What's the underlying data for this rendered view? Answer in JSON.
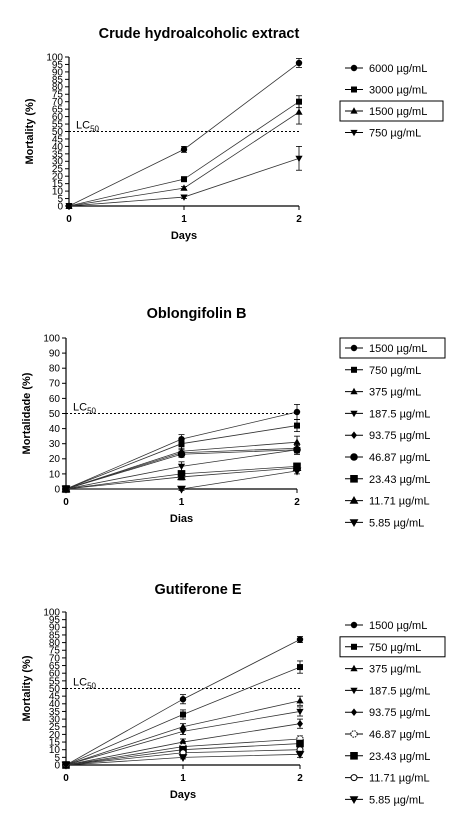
{
  "chart_data": [
    {
      "type": "line",
      "title": "Crude hydroalcoholic extract",
      "xlabel": "Days",
      "ylabel": "Mortality (%)",
      "x": [
        0,
        1,
        2
      ],
      "xticks": [
        "0",
        "1",
        "2"
      ],
      "ylim": [
        0,
        100
      ],
      "yticks": [
        "0",
        "5",
        "10",
        "15",
        "20",
        "25",
        "30",
        "35",
        "40",
        "45",
        "50",
        "55",
        "60",
        "65",
        "70",
        "75",
        "80",
        "85",
        "90",
        "95",
        "100"
      ],
      "threshold": {
        "value": 50,
        "label": "LC",
        "sub": "50"
      },
      "legend_position": "right",
      "highlighted_series": 2,
      "series": [
        {
          "name": "6000 µg/mL",
          "marker": "circle",
          "values": [
            0,
            38,
            96
          ],
          "err": [
            0,
            2,
            3
          ]
        },
        {
          "name": "3000 µg/mL",
          "marker": "square",
          "values": [
            0,
            18,
            70
          ],
          "err": [
            0,
            1,
            4
          ]
        },
        {
          "name": "1500 µg/mL",
          "marker": "triangle",
          "values": [
            0,
            12,
            63
          ],
          "err": [
            0,
            1,
            8
          ]
        },
        {
          "name": "750 µg/mL",
          "marker": "tri-down",
          "values": [
            0,
            6,
            32
          ],
          "err": [
            0,
            1,
            8
          ]
        }
      ]
    },
    {
      "type": "line",
      "title": "Oblongifolin B",
      "xlabel": "Dias",
      "ylabel": "Mortalidade (%)",
      "x": [
        0,
        1,
        2
      ],
      "xticks": [
        "0",
        "1",
        "2"
      ],
      "ylim": [
        0,
        100
      ],
      "yticks": [
        "0",
        "10",
        "20",
        "30",
        "40",
        "50",
        "60",
        "70",
        "80",
        "90",
        "100"
      ],
      "threshold": {
        "value": 50,
        "label": "LC",
        "sub": "50"
      },
      "legend_position": "right",
      "highlighted_series": 0,
      "series": [
        {
          "name": "1500 µg/mL",
          "marker": "circle",
          "values": [
            0,
            33,
            51
          ],
          "err": [
            0,
            3,
            5
          ]
        },
        {
          "name": "750 µg/mL",
          "marker": "square",
          "values": [
            0,
            30,
            42
          ],
          "err": [
            0,
            3,
            4
          ]
        },
        {
          "name": "375 µg/mL",
          "marker": "triangle",
          "values": [
            0,
            25,
            31
          ],
          "err": [
            0,
            3,
            4
          ]
        },
        {
          "name": "187.5 µg/mL",
          "marker": "tri-down",
          "values": [
            0,
            15,
            26
          ],
          "err": [
            0,
            3,
            3
          ]
        },
        {
          "name": "93.75 µg/mL",
          "marker": "diamond",
          "values": [
            0,
            24,
            27
          ],
          "err": [
            0,
            2,
            3
          ]
        },
        {
          "name": "46.87 µg/mL",
          "marker": "circle-big",
          "values": [
            0,
            23,
            26
          ],
          "err": [
            0,
            2,
            3
          ]
        },
        {
          "name": "23.43 µg/mL",
          "marker": "square-big",
          "values": [
            0,
            10,
            15
          ],
          "err": [
            0,
            2,
            2
          ]
        },
        {
          "name": "11.71 µg/mL",
          "marker": "triangle-big",
          "values": [
            0,
            8,
            14
          ],
          "err": [
            0,
            2,
            2
          ]
        },
        {
          "name": "5.85 µg/mL",
          "marker": "tri-down-big",
          "values": [
            0,
            0,
            12
          ],
          "err": [
            0,
            1,
            2
          ]
        }
      ]
    },
    {
      "type": "line",
      "title": "Gutiferone E",
      "xlabel": "Days",
      "ylabel": "Mortality (%)",
      "x": [
        0,
        1,
        2
      ],
      "xticks": [
        "0",
        "1",
        "2"
      ],
      "ylim": [
        0,
        100
      ],
      "yticks": [
        "0",
        "5",
        "10",
        "15",
        "20",
        "25",
        "30",
        "35",
        "40",
        "45",
        "50",
        "55",
        "60",
        "65",
        "70",
        "75",
        "80",
        "85",
        "90",
        "95",
        "100"
      ],
      "threshold": {
        "value": 50,
        "label": "LC",
        "sub": "50"
      },
      "legend_position": "right",
      "highlighted_series": 1,
      "series": [
        {
          "name": "1500 µg/mL",
          "marker": "circle",
          "values": [
            0,
            43,
            82
          ],
          "err": [
            0,
            3,
            2
          ]
        },
        {
          "name": "750 µg/mL",
          "marker": "square",
          "values": [
            0,
            33,
            64
          ],
          "err": [
            0,
            3,
            4
          ]
        },
        {
          "name": "375 µg/mL",
          "marker": "triangle",
          "values": [
            0,
            25,
            42
          ],
          "err": [
            0,
            2,
            3
          ]
        },
        {
          "name": "187.5 µg/mL",
          "marker": "tri-down",
          "values": [
            0,
            22,
            35
          ],
          "err": [
            0,
            2,
            3
          ]
        },
        {
          "name": "93.75 µg/mL",
          "marker": "diamond",
          "values": [
            0,
            15,
            27
          ],
          "err": [
            0,
            2,
            3
          ]
        },
        {
          "name": "46.87 µg/mL",
          "marker": "circle-open-dash",
          "values": [
            0,
            12,
            17
          ],
          "err": [
            0,
            2,
            2
          ]
        },
        {
          "name": "23.43 µg/mL",
          "marker": "square-big",
          "values": [
            0,
            10,
            14
          ],
          "err": [
            0,
            2,
            2
          ]
        },
        {
          "name": "11.71 µg/mL",
          "marker": "circle-open",
          "values": [
            0,
            8,
            10
          ],
          "err": [
            0,
            1,
            2
          ]
        },
        {
          "name": "5.85 µg/mL",
          "marker": "tri-down-big",
          "values": [
            0,
            5,
            7
          ],
          "err": [
            0,
            1,
            2
          ]
        }
      ]
    }
  ]
}
